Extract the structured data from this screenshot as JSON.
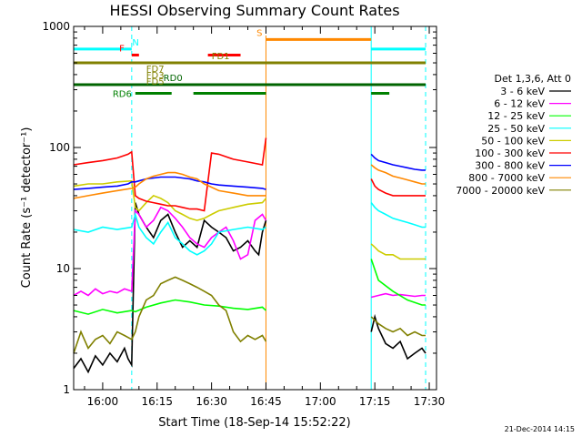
{
  "chart_data": {
    "type": "line",
    "title": "HESSI Observing Summary Count Rates",
    "xlabel": "Start Time (18-Sep-14 15:52:22)",
    "ylabel": "Count Rate (s⁻¹ detector⁻¹)",
    "yscale": "log",
    "ylim": [
      1,
      1000
    ],
    "xlim_minutes_after_1552": [
      0,
      100
    ],
    "y_tick_labels": [
      "1",
      "10",
      "100",
      "1000"
    ],
    "y_ticks": [
      1,
      10,
      100,
      1000
    ],
    "x_tick_labels": [
      "16:00",
      "16:15",
      "16:30",
      "16:45",
      "17:00",
      "17:15",
      "17:30"
    ],
    "x_ticks_min": [
      8,
      23,
      38,
      53,
      68,
      83,
      98
    ],
    "legend_title": "Det 1,3,6, Att 0",
    "legend_position": "right",
    "footer_date": "21-Dec-2014 14:15",
    "night_boundaries_min": [
      0,
      16,
      82,
      97
    ],
    "series": [
      {
        "name": "3 - 6 keV",
        "color": "#000000",
        "x": [
          0,
          2,
          4,
          6,
          8,
          10,
          12,
          14,
          15,
          16,
          17,
          18,
          20,
          22,
          24,
          26,
          28,
          30,
          32,
          34,
          36,
          38,
          40,
          42,
          44,
          46,
          48,
          50,
          51,
          52,
          53,
          82,
          83,
          84,
          86,
          88,
          90,
          92,
          94,
          96,
          97
        ],
        "y": [
          1.5,
          1.8,
          1.4,
          1.9,
          1.6,
          2.0,
          1.7,
          2.2,
          1.8,
          1.6,
          35,
          28,
          22,
          18,
          25,
          28,
          20,
          15,
          17,
          15,
          25,
          22,
          20,
          18,
          14,
          15,
          17,
          14,
          13,
          20,
          25,
          3.0,
          4.0,
          3.2,
          2.4,
          2.2,
          2.5,
          1.8,
          2.0,
          2.2,
          2.0
        ]
      },
      {
        "name": "6 - 12 keV",
        "color": "#ff00ff",
        "x": [
          0,
          2,
          4,
          6,
          8,
          10,
          12,
          14,
          16,
          17,
          18,
          20,
          22,
          24,
          26,
          28,
          30,
          32,
          34,
          36,
          38,
          40,
          42,
          44,
          46,
          48,
          50,
          52,
          53,
          82,
          84,
          86,
          88,
          90,
          92,
          94,
          96,
          97
        ],
        "y": [
          6.0,
          6.5,
          6.0,
          6.8,
          6.2,
          6.5,
          6.3,
          6.8,
          6.5,
          30,
          28,
          22,
          25,
          32,
          30,
          26,
          22,
          18,
          16,
          15,
          18,
          20,
          22,
          17,
          12,
          13,
          25,
          28,
          25,
          5.8,
          6.0,
          6.2,
          6.0,
          6.1,
          6.0,
          5.9,
          6.0,
          6.0
        ]
      },
      {
        "name": "12 - 25 keV",
        "color": "#00ff00",
        "x": [
          0,
          4,
          8,
          12,
          16,
          17,
          20,
          24,
          28,
          32,
          36,
          40,
          44,
          48,
          52,
          53,
          82,
          84,
          88,
          92,
          96,
          97
        ],
        "y": [
          4.5,
          4.2,
          4.6,
          4.3,
          4.5,
          4.4,
          4.8,
          5.2,
          5.5,
          5.3,
          5.0,
          4.9,
          4.7,
          4.6,
          4.8,
          4.5,
          12,
          8,
          6.5,
          5.5,
          5.0,
          5.0
        ]
      },
      {
        "name": "25 - 50 keV",
        "color": "#00ffff",
        "x": [
          0,
          4,
          8,
          12,
          16,
          17,
          18,
          20,
          22,
          24,
          26,
          28,
          30,
          32,
          34,
          36,
          38,
          40,
          44,
          48,
          52,
          53,
          82,
          83,
          84,
          86,
          88,
          90,
          92,
          94,
          96,
          97
        ],
        "y": [
          21,
          20,
          22,
          21,
          22,
          28,
          22,
          18,
          16,
          20,
          24,
          18,
          16,
          14,
          13,
          14,
          16,
          20,
          21,
          22,
          21,
          22,
          35,
          32,
          30,
          28,
          26,
          25,
          24,
          23,
          22,
          22
        ]
      },
      {
        "name": "50 - 100 keV",
        "color": "#cccc00",
        "x": [
          0,
          4,
          8,
          12,
          16,
          17,
          18,
          20,
          22,
          24,
          26,
          28,
          30,
          32,
          34,
          36,
          38,
          40,
          44,
          48,
          52,
          53,
          82,
          83,
          84,
          86,
          88,
          90,
          92,
          94,
          96,
          97
        ],
        "y": [
          48,
          50,
          50,
          52,
          53,
          32,
          30,
          35,
          40,
          38,
          35,
          30,
          28,
          26,
          25,
          26,
          28,
          30,
          32,
          34,
          35,
          38,
          16,
          15,
          14,
          13,
          13,
          12,
          12,
          12,
          12,
          12
        ]
      },
      {
        "name": "100 - 300 keV",
        "color": "#ff0000",
        "x": [
          0,
          4,
          8,
          12,
          15,
          16,
          17,
          18,
          20,
          22,
          24,
          26,
          28,
          30,
          32,
          34,
          36,
          38,
          40,
          44,
          48,
          52,
          53,
          82,
          83,
          84,
          86,
          88,
          90,
          92,
          94,
          96,
          97
        ],
        "y": [
          72,
          75,
          78,
          82,
          88,
          92,
          40,
          38,
          36,
          35,
          34,
          33,
          33,
          32,
          31,
          31,
          30,
          90,
          88,
          80,
          76,
          72,
          120,
          55,
          48,
          45,
          42,
          40,
          40,
          40,
          40,
          40,
          40
        ]
      },
      {
        "name": "300 - 800 keV",
        "color": "#0000ff",
        "x": [
          0,
          4,
          8,
          12,
          15,
          16,
          17,
          18,
          20,
          22,
          24,
          26,
          28,
          30,
          32,
          34,
          36,
          38,
          40,
          44,
          48,
          52,
          53,
          82,
          83,
          84,
          86,
          88,
          90,
          92,
          94,
          96,
          97
        ],
        "y": [
          45,
          46,
          47,
          48,
          50,
          52,
          52,
          53,
          55,
          56,
          57,
          57,
          57,
          56,
          55,
          53,
          52,
          50,
          49,
          48,
          47,
          46,
          45,
          88,
          82,
          78,
          75,
          72,
          70,
          68,
          66,
          65,
          65
        ]
      },
      {
        "name": "800 - 7000 keV",
        "color": "#ff8800",
        "x": [
          0,
          4,
          8,
          12,
          16,
          17,
          18,
          20,
          22,
          24,
          26,
          28,
          30,
          32,
          34,
          36,
          38,
          40,
          44,
          48,
          52,
          53,
          82,
          83,
          84,
          86,
          88,
          90,
          92,
          94,
          96,
          97
        ],
        "y": [
          38,
          40,
          42,
          44,
          46,
          47,
          50,
          55,
          58,
          60,
          62,
          62,
          60,
          57,
          55,
          50,
          47,
          44,
          42,
          40,
          40,
          40,
          72,
          68,
          65,
          62,
          58,
          56,
          54,
          52,
          50,
          50
        ]
      },
      {
        "name": "7000 - 20000 keV",
        "color": "#808000",
        "x": [
          0,
          2,
          4,
          6,
          8,
          10,
          12,
          14,
          16,
          17,
          18,
          20,
          22,
          24,
          26,
          28,
          30,
          32,
          34,
          36,
          38,
          40,
          42,
          44,
          46,
          48,
          50,
          52,
          53,
          82,
          84,
          86,
          88,
          90,
          92,
          94,
          96,
          97
        ],
        "y": [
          2.0,
          3.0,
          2.2,
          2.6,
          2.8,
          2.4,
          3.0,
          2.8,
          2.6,
          3.0,
          4.0,
          5.5,
          6.0,
          7.5,
          8.0,
          8.5,
          8.0,
          7.5,
          7.0,
          6.5,
          6.0,
          5.0,
          4.5,
          3.0,
          2.5,
          2.8,
          2.6,
          2.8,
          2.5,
          4.0,
          3.5,
          3.2,
          3.0,
          3.2,
          2.8,
          3.0,
          2.8,
          2.8
        ]
      }
    ],
    "state_bars": [
      {
        "label": "N",
        "color": "#00ffff",
        "y": 650,
        "segments": [
          [
            0,
            16
          ],
          [
            82,
            97
          ]
        ]
      },
      {
        "label": "F",
        "color": "#ff0000",
        "y": 580,
        "segments": [
          [
            16,
            18
          ]
        ]
      },
      {
        "label": "S",
        "color": "#ff8800",
        "y": 780,
        "segments": [
          [
            53,
            82
          ]
        ]
      },
      {
        "label": "",
        "color": "#ff0000",
        "y": 580,
        "segments": [
          [
            37,
            46
          ]
        ]
      },
      {
        "label": "FD1",
        "color": "#808000",
        "y": 500,
        "segments": [
          [
            0,
            97
          ]
        ]
      },
      {
        "label": "RD0",
        "color": "#006400",
        "y": 330,
        "segments": [
          [
            0,
            97
          ]
        ]
      },
      {
        "label": "RD6",
        "color": "#008000",
        "y": 280,
        "segments": [
          [
            17,
            27
          ],
          [
            33,
            53
          ],
          [
            82,
            87
          ]
        ]
      }
    ],
    "mini_labels": [
      "FD7",
      "FD3",
      "FD5"
    ]
  }
}
